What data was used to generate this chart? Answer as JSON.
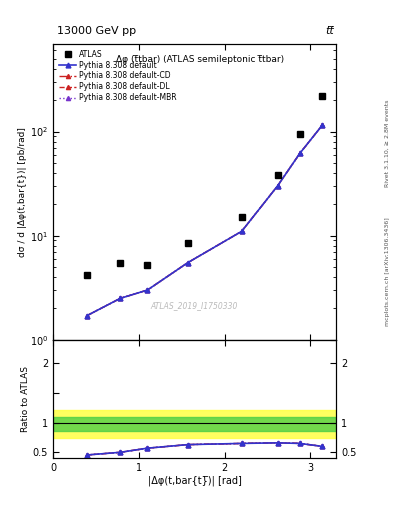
{
  "title_top": "13000 GeV pp",
  "title_right": "tt̅",
  "inner_title": "Δφ (t̅tbar) (ATLAS semileptonic t̅tbar)",
  "watermark": "ATLAS_2019_I1750330",
  "rivet_label": "Rivet 3.1.10, ≥ 2.8M events",
  "arxiv_label": "mcplots.cern.ch [arXiv:1306.3436]",
  "data_x": [
    0.393,
    0.785,
    1.1,
    1.571,
    2.2,
    2.618,
    2.88,
    3.14
  ],
  "data_y": [
    4.2,
    5.5,
    5.2,
    8.5,
    15.0,
    38.0,
    95.0,
    220.0
  ],
  "pythia_x": [
    0.393,
    0.785,
    1.1,
    1.571,
    2.2,
    2.618,
    2.88,
    3.14
  ],
  "pythia_default_y": [
    1.7,
    2.5,
    3.0,
    5.5,
    11.0,
    30.0,
    62.0,
    115.0
  ],
  "pythia_cd_y": [
    1.7,
    2.5,
    3.0,
    5.5,
    11.0,
    30.0,
    62.0,
    115.0
  ],
  "pythia_dl_y": [
    1.7,
    2.5,
    3.0,
    5.5,
    11.0,
    30.0,
    62.0,
    115.0
  ],
  "pythia_mbr_y": [
    1.7,
    2.5,
    3.0,
    5.5,
    11.0,
    30.0,
    62.0,
    115.0
  ],
  "ratio_x": [
    0.393,
    0.785,
    1.1,
    1.571,
    2.2,
    2.618,
    2.88,
    3.14
  ],
  "ratio_default_y": [
    0.455,
    0.5,
    0.57,
    0.63,
    0.65,
    0.66,
    0.65,
    0.6
  ],
  "ratio_cd_y": [
    0.455,
    0.5,
    0.57,
    0.63,
    0.65,
    0.66,
    0.65,
    0.6
  ],
  "ratio_dl_y": [
    0.455,
    0.5,
    0.57,
    0.63,
    0.65,
    0.66,
    0.65,
    0.6
  ],
  "ratio_mbr_y": [
    0.455,
    0.5,
    0.57,
    0.63,
    0.65,
    0.66,
    0.65,
    0.6
  ],
  "band_green_lo": 0.865,
  "band_green_hi": 1.1,
  "band_yellow_lo": 0.745,
  "band_yellow_hi": 1.215,
  "ylabel_main": "dσ / d |Δφ(t,bar{t})| [pb/rad]",
  "ylabel_ratio": "Ratio to ATLAS",
  "xlabel": "|Δφ(t,bar{t}̅)| [rad]",
  "color_default": "#3333cc",
  "color_cd": "#cc2222",
  "color_dl": "#cc2222",
  "color_mbr": "#7733cc",
  "xlim": [
    0.0,
    3.3
  ],
  "ylim_main": [
    1.0,
    700.0
  ],
  "ylim_ratio": [
    0.4,
    2.4
  ],
  "yticks_ratio": [
    0.5,
    1.0,
    1.5,
    2.0
  ],
  "ytick_ratio_labels": [
    "0.5",
    "1",
    "",
    "2"
  ]
}
